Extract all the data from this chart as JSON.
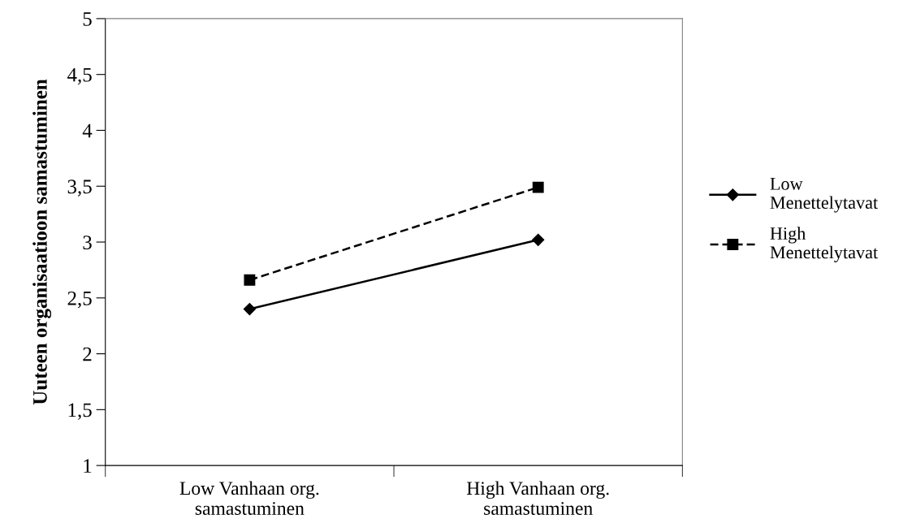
{
  "chart_data": {
    "type": "line",
    "ylabel": "Uuteen organisaatioon samastuminen",
    "categories": [
      "Low Vanhaan org.\nsamastuminen",
      "High Vanhaan org.\nsamastuminen"
    ],
    "series": [
      {
        "name": "Low\nMenettelytavat",
        "color": "#000000",
        "values": [
          2.4,
          3.02
        ],
        "marker": "diamond",
        "line_style": "solid"
      },
      {
        "name": "High\nMenettelytavat",
        "color": "#000000",
        "values": [
          2.66,
          3.49
        ],
        "marker": "square",
        "line_style": "dashed"
      }
    ],
    "ylim": [
      1,
      5
    ],
    "yticks": [
      1,
      {
        "value": 1.5,
        "label": "1,5"
      },
      2,
      {
        "value": 2.5,
        "label": "2,5"
      },
      3,
      {
        "value": 3.5,
        "label": "3,5"
      },
      4,
      {
        "value": 4.5,
        "label": "4,5"
      },
      5
    ],
    "grid": false,
    "legend": "right"
  }
}
